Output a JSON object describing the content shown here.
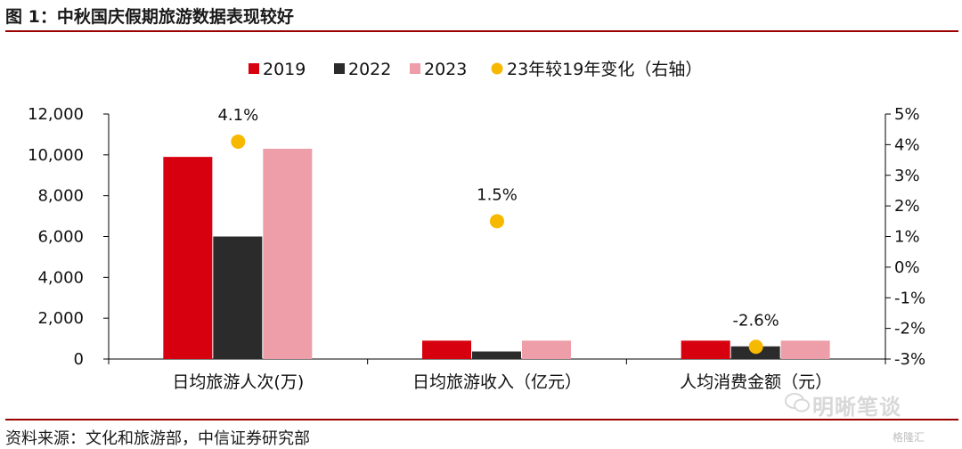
{
  "header": {
    "title": "图 1：中秋国庆假期旅游数据表现较好"
  },
  "footer": {
    "source": "资料来源：文化和旅游部，中信证券研究部"
  },
  "watermark": {
    "text": "明晰笔谈",
    "corner_logo": "格隆汇"
  },
  "chart_data": {
    "type": "bar",
    "categories": [
      "日均旅游人次(万)",
      "日均旅游收入（亿元）",
      "人均消费金额（元）"
    ],
    "series": [
      {
        "name": "2019",
        "type": "bar",
        "axis": "left",
        "values": [
          9900,
          900,
          900
        ]
      },
      {
        "name": "2022",
        "type": "bar",
        "axis": "left",
        "values": [
          6000,
          370,
          620
        ]
      },
      {
        "name": "2023",
        "type": "bar",
        "axis": "left",
        "values": [
          10300,
          900,
          900
        ]
      },
      {
        "name": "23年较19年变化（右轴）",
        "type": "scatter",
        "axis": "right",
        "values": [
          4.1,
          1.5,
          -2.6
        ],
        "labels": [
          "4.1%",
          "1.5%",
          "-2.6%"
        ]
      }
    ],
    "y_left": {
      "min": 0,
      "max": 12000,
      "ticks": [
        "0",
        "2,000",
        "4,000",
        "6,000",
        "8,000",
        "10,000",
        "12,000"
      ]
    },
    "y_right": {
      "min": -3,
      "max": 5,
      "ticks": [
        "-3%",
        "-2%",
        "-1%",
        "0%",
        "1%",
        "2%",
        "3%",
        "4%",
        "5%"
      ]
    },
    "legend_position": "top-center",
    "grid": false,
    "colors": {
      "2019": "#d7000f",
      "2022": "#2b2b2b",
      "2023": "#ee9ea8",
      "change": "#f7b800"
    }
  }
}
